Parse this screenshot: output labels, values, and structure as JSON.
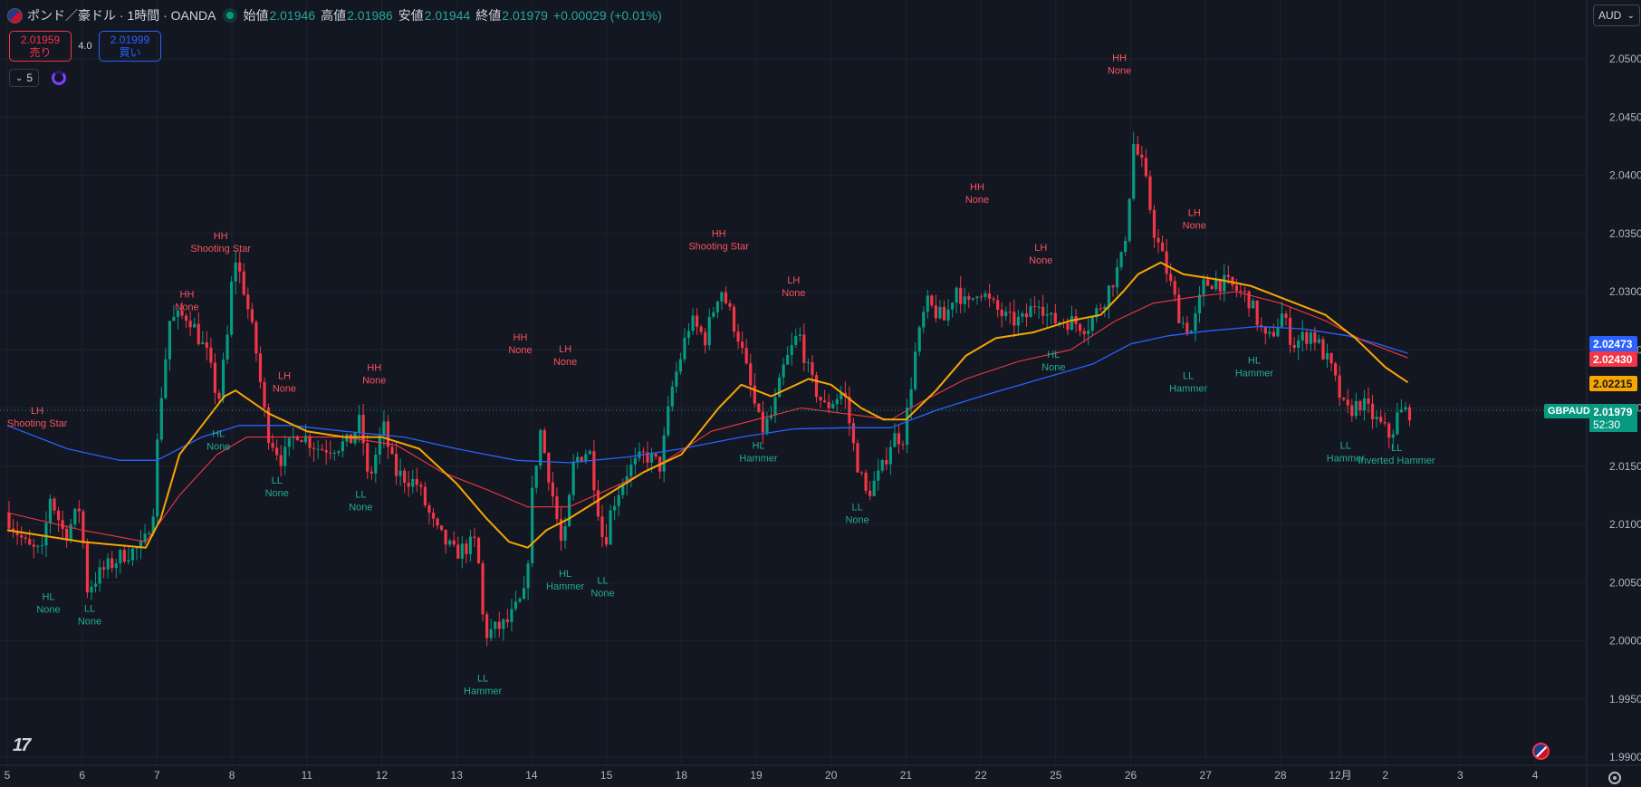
{
  "legend": {
    "symbol": "ポンド／豪ドル · 1時間 · OANDA",
    "open_label": "始値",
    "open": "2.01946",
    "high_label": "高値",
    "high": "2.01986",
    "low_label": "安値",
    "low": "2.01944",
    "close_label": "終値",
    "close": "2.01979",
    "change": "+0.00029 (+0.01%)"
  },
  "trade": {
    "sell_price": "2.01959",
    "sell_label": "売り",
    "spread": "4.0",
    "buy_price": "2.01999",
    "buy_label": "買い"
  },
  "indicators": {
    "count": "5"
  },
  "currency": "AUD",
  "price_tags": {
    "blue": "2.02473",
    "red": "2.02430",
    "orange": "2.02215",
    "last": "2.01979",
    "countdown": "52:30",
    "symbol": "GBPAUD"
  },
  "colors": {
    "background": "#131722",
    "up": "#089981",
    "down": "#f23645",
    "ema_fast": "#f7a600",
    "ma_red": "#f23645",
    "ma_blue": "#2962ff",
    "label_high": "#f7525f",
    "label_low": "#22ab94"
  },
  "chart_data": {
    "type": "candlestick",
    "y_range": [
      1.99,
      2.052
    ],
    "y_ticks": [
      2.05,
      2.045,
      2.04,
      2.035,
      2.03,
      2.025,
      2.02,
      2.015,
      2.01,
      2.005,
      2.0,
      1.995,
      1.99
    ],
    "x_range": [
      0,
      20.4
    ],
    "x_ticks": [
      {
        "x": 0,
        "label": "5"
      },
      {
        "x": 1,
        "label": "6"
      },
      {
        "x": 2,
        "label": "7"
      },
      {
        "x": 3,
        "label": "8"
      },
      {
        "x": 4,
        "label": "11"
      },
      {
        "x": 5,
        "label": "12"
      },
      {
        "x": 6,
        "label": "13"
      },
      {
        "x": 7,
        "label": "14"
      },
      {
        "x": 8,
        "label": "15"
      },
      {
        "x": 9,
        "label": "18"
      },
      {
        "x": 10,
        "label": "19"
      },
      {
        "x": 11,
        "label": "20"
      },
      {
        "x": 12,
        "label": "21"
      },
      {
        "x": 13,
        "label": "22"
      },
      {
        "x": 14,
        "label": "25"
      },
      {
        "x": 15,
        "label": "26"
      },
      {
        "x": 16,
        "label": "27"
      },
      {
        "x": 17,
        "label": "28"
      },
      {
        "x": 17.8,
        "label": "12月"
      },
      {
        "x": 18.4,
        "label": "2"
      },
      {
        "x": 19.4,
        "label": "3"
      },
      {
        "x": 20.4,
        "label": "4"
      }
    ],
    "price_path": [
      [
        0,
        2.011
      ],
      [
        0.3,
        2.008
      ],
      [
        0.5,
        2.0075
      ],
      [
        0.6,
        2.0125
      ],
      [
        0.8,
        2.009
      ],
      [
        1.0,
        2.0115
      ],
      [
        1.1,
        2.0045
      ],
      [
        1.3,
        2.006
      ],
      [
        1.6,
        2.0075
      ],
      [
        1.85,
        2.008
      ],
      [
        2.0,
        2.012
      ],
      [
        2.05,
        2.019
      ],
      [
        2.2,
        2.0275
      ],
      [
        2.45,
        2.028
      ],
      [
        2.7,
        2.0245
      ],
      [
        2.85,
        2.0205
      ],
      [
        3.0,
        2.0275
      ],
      [
        3.05,
        2.0335
      ],
      [
        3.2,
        2.03
      ],
      [
        3.35,
        2.025
      ],
      [
        3.5,
        2.018
      ],
      [
        3.7,
        2.0155
      ],
      [
        3.9,
        2.018
      ],
      [
        4.2,
        2.0165
      ],
      [
        4.6,
        2.017
      ],
      [
        4.75,
        2.019
      ],
      [
        4.85,
        2.0135
      ],
      [
        5.05,
        2.0185
      ],
      [
        5.2,
        2.0145
      ],
      [
        5.5,
        2.0135
      ],
      [
        5.75,
        2.0095
      ],
      [
        6.0,
        2.0075
      ],
      [
        6.3,
        2.0085
      ],
      [
        6.4,
        2.0005
      ],
      [
        6.7,
        2.0015
      ],
      [
        6.95,
        2.004
      ],
      [
        7.05,
        2.0135
      ],
      [
        7.15,
        2.018
      ],
      [
        7.3,
        2.013
      ],
      [
        7.45,
        2.0075
      ],
      [
        7.6,
        2.0155
      ],
      [
        7.8,
        2.0165
      ],
      [
        8.0,
        2.008
      ],
      [
        8.1,
        2.0115
      ],
      [
        8.3,
        2.0145
      ],
      [
        8.55,
        2.016
      ],
      [
        8.75,
        2.015
      ],
      [
        8.9,
        2.0215
      ],
      [
        9.15,
        2.0275
      ],
      [
        9.35,
        2.026
      ],
      [
        9.55,
        2.0305
      ],
      [
        9.8,
        2.026
      ],
      [
        10.0,
        2.0205
      ],
      [
        10.1,
        2.018
      ],
      [
        10.25,
        2.0195
      ],
      [
        10.4,
        2.0235
      ],
      [
        10.6,
        2.0265
      ],
      [
        10.75,
        2.0225
      ],
      [
        10.95,
        2.02
      ],
      [
        11.2,
        2.0215
      ],
      [
        11.35,
        2.016
      ],
      [
        11.5,
        2.0125
      ],
      [
        11.7,
        2.0145
      ],
      [
        11.85,
        2.0175
      ],
      [
        12.0,
        2.0175
      ],
      [
        12.15,
        2.0245
      ],
      [
        12.3,
        2.029
      ],
      [
        12.55,
        2.0275
      ],
      [
        12.7,
        2.0305
      ],
      [
        12.85,
        2.0285
      ],
      [
        13.0,
        2.0305
      ],
      [
        13.15,
        2.029
      ],
      [
        13.4,
        2.0275
      ],
      [
        13.6,
        2.0275
      ],
      [
        13.8,
        2.0295
      ],
      [
        13.95,
        2.0275
      ],
      [
        14.2,
        2.0275
      ],
      [
        14.45,
        2.027
      ],
      [
        14.65,
        2.029
      ],
      [
        14.9,
        2.0325
      ],
      [
        15.0,
        2.0365
      ],
      [
        15.05,
        2.043
      ],
      [
        15.2,
        2.0405
      ],
      [
        15.35,
        2.035
      ],
      [
        15.5,
        2.032
      ],
      [
        15.7,
        2.0275
      ],
      [
        15.85,
        2.0265
      ],
      [
        16.0,
        2.0305
      ],
      [
        16.15,
        2.031
      ],
      [
        16.35,
        2.0305
      ],
      [
        16.6,
        2.0295
      ],
      [
        16.85,
        2.0255
      ],
      [
        17.05,
        2.028
      ],
      [
        17.2,
        2.0255
      ],
      [
        17.45,
        2.0265
      ],
      [
        17.7,
        2.0235
      ],
      [
        17.9,
        2.0195
      ],
      [
        18.1,
        2.0205
      ],
      [
        18.3,
        2.019
      ],
      [
        18.5,
        2.0175
      ],
      [
        18.6,
        2.0195
      ],
      [
        18.7,
        2.0197
      ]
    ],
    "ema_fast": [
      [
        0,
        2.0095
      ],
      [
        1.0,
        2.0085
      ],
      [
        1.85,
        2.008
      ],
      [
        2.05,
        2.0105
      ],
      [
        2.3,
        2.016
      ],
      [
        2.6,
        2.0185
      ],
      [
        2.9,
        2.021
      ],
      [
        3.05,
        2.0215
      ],
      [
        3.5,
        2.0195
      ],
      [
        4.0,
        2.018
      ],
      [
        4.5,
        2.0175
      ],
      [
        5.0,
        2.0175
      ],
      [
        5.5,
        2.0165
      ],
      [
        6.0,
        2.0135
      ],
      [
        6.4,
        2.0105
      ],
      [
        6.7,
        2.0085
      ],
      [
        6.95,
        2.008
      ],
      [
        7.2,
        2.0095
      ],
      [
        7.5,
        2.0105
      ],
      [
        8.0,
        2.0125
      ],
      [
        8.5,
        2.0145
      ],
      [
        9.0,
        2.016
      ],
      [
        9.5,
        2.02
      ],
      [
        9.8,
        2.022
      ],
      [
        10.2,
        2.021
      ],
      [
        10.7,
        2.0225
      ],
      [
        11.0,
        2.022
      ],
      [
        11.4,
        2.02
      ],
      [
        11.7,
        2.019
      ],
      [
        12.0,
        2.019
      ],
      [
        12.4,
        2.0215
      ],
      [
        12.8,
        2.0245
      ],
      [
        13.2,
        2.026
      ],
      [
        13.7,
        2.0265
      ],
      [
        14.2,
        2.0275
      ],
      [
        14.6,
        2.028
      ],
      [
        14.9,
        2.03
      ],
      [
        15.1,
        2.0315
      ],
      [
        15.4,
        2.0325
      ],
      [
        15.7,
        2.0315
      ],
      [
        16.2,
        2.031
      ],
      [
        16.6,
        2.0305
      ],
      [
        17.0,
        2.0295
      ],
      [
        17.6,
        2.028
      ],
      [
        18.0,
        2.026
      ],
      [
        18.4,
        2.0235
      ],
      [
        18.7,
        2.0222
      ]
    ],
    "ma_red": [
      [
        0,
        2.011
      ],
      [
        1.0,
        2.0095
      ],
      [
        1.85,
        2.0085
      ],
      [
        2.3,
        2.0125
      ],
      [
        2.8,
        2.016
      ],
      [
        3.2,
        2.0175
      ],
      [
        3.7,
        2.0175
      ],
      [
        4.5,
        2.0175
      ],
      [
        5.2,
        2.0168
      ],
      [
        5.8,
        2.0145
      ],
      [
        6.4,
        2.013
      ],
      [
        6.95,
        2.0115
      ],
      [
        7.5,
        2.0115
      ],
      [
        8.2,
        2.0135
      ],
      [
        8.8,
        2.0155
      ],
      [
        9.4,
        2.018
      ],
      [
        10.0,
        2.019
      ],
      [
        10.6,
        2.02
      ],
      [
        11.2,
        2.0195
      ],
      [
        11.8,
        2.019
      ],
      [
        12.2,
        2.0205
      ],
      [
        12.8,
        2.0225
      ],
      [
        13.5,
        2.024
      ],
      [
        14.2,
        2.025
      ],
      [
        14.8,
        2.0275
      ],
      [
        15.3,
        2.029
      ],
      [
        15.8,
        2.0295
      ],
      [
        16.4,
        2.03
      ],
      [
        17.0,
        2.029
      ],
      [
        17.6,
        2.0275
      ],
      [
        18.1,
        2.0258
      ],
      [
        18.7,
        2.0243
      ]
    ],
    "ma_blue": [
      [
        0,
        2.0185
      ],
      [
        0.8,
        2.0165
      ],
      [
        1.5,
        2.0155
      ],
      [
        2.0,
        2.0155
      ],
      [
        2.6,
        2.0175
      ],
      [
        3.1,
        2.0185
      ],
      [
        3.8,
        2.0185
      ],
      [
        4.5,
        2.018
      ],
      [
        5.3,
        2.0175
      ],
      [
        6.0,
        2.0165
      ],
      [
        6.8,
        2.0155
      ],
      [
        7.5,
        2.0153
      ],
      [
        8.3,
        2.0158
      ],
      [
        9.0,
        2.0165
      ],
      [
        9.8,
        2.0175
      ],
      [
        10.5,
        2.0182
      ],
      [
        11.2,
        2.0183
      ],
      [
        11.8,
        2.0183
      ],
      [
        12.4,
        2.0198
      ],
      [
        13.0,
        2.021
      ],
      [
        13.8,
        2.0225
      ],
      [
        14.5,
        2.0238
      ],
      [
        15.0,
        2.0255
      ],
      [
        15.5,
        2.0262
      ],
      [
        16.0,
        2.0266
      ],
      [
        16.7,
        2.027
      ],
      [
        17.3,
        2.0268
      ],
      [
        17.9,
        2.0262
      ],
      [
        18.3,
        2.0255
      ],
      [
        18.7,
        2.0247
      ]
    ],
    "annotations": [
      {
        "x": 0.4,
        "y": 2.0195,
        "type": "high",
        "lines": [
          "LH",
          "Shooting Star"
        ]
      },
      {
        "x": 0.55,
        "y": 2.0035,
        "type": "low",
        "lines": [
          "HL",
          "None"
        ]
      },
      {
        "x": 1.1,
        "y": 2.0025,
        "type": "low",
        "lines": [
          "LL",
          "None"
        ]
      },
      {
        "x": 2.4,
        "y": 2.0295,
        "type": "high",
        "lines": [
          "HH",
          "None"
        ]
      },
      {
        "x": 2.85,
        "y": 2.0345,
        "type": "high",
        "lines": [
          "HH",
          "Shooting Star"
        ]
      },
      {
        "x": 2.82,
        "y": 2.0175,
        "type": "low",
        "lines": [
          "HL",
          "None"
        ]
      },
      {
        "x": 3.7,
        "y": 2.0225,
        "type": "high",
        "lines": [
          "LH",
          "None"
        ]
      },
      {
        "x": 3.6,
        "y": 2.0135,
        "type": "low",
        "lines": [
          "LL",
          "None"
        ]
      },
      {
        "x": 4.9,
        "y": 2.0232,
        "type": "high",
        "lines": [
          "HH",
          "None"
        ]
      },
      {
        "x": 4.72,
        "y": 2.0123,
        "type": "low",
        "lines": [
          "LL",
          "None"
        ]
      },
      {
        "x": 6.85,
        "y": 2.0258,
        "type": "high",
        "lines": [
          "HH",
          "None"
        ]
      },
      {
        "x": 7.45,
        "y": 2.0248,
        "type": "high",
        "lines": [
          "LH",
          "None"
        ]
      },
      {
        "x": 7.45,
        "y": 2.0055,
        "type": "low",
        "lines": [
          "HL",
          "Hammer"
        ]
      },
      {
        "x": 6.35,
        "y": 1.9965,
        "type": "low",
        "lines": [
          "LL",
          "Hammer"
        ]
      },
      {
        "x": 7.95,
        "y": 2.0049,
        "type": "low",
        "lines": [
          "LL",
          "None"
        ]
      },
      {
        "x": 9.5,
        "y": 2.0347,
        "type": "high",
        "lines": [
          "HH",
          "Shooting Star"
        ]
      },
      {
        "x": 10.5,
        "y": 2.0307,
        "type": "high",
        "lines": [
          "LH",
          "None"
        ]
      },
      {
        "x": 10.03,
        "y": 2.0165,
        "type": "low",
        "lines": [
          "HL",
          "Hammer"
        ]
      },
      {
        "x": 11.35,
        "y": 2.0112,
        "type": "low",
        "lines": [
          "LL",
          "None"
        ]
      },
      {
        "x": 12.95,
        "y": 2.0387,
        "type": "high",
        "lines": [
          "HH",
          "None"
        ]
      },
      {
        "x": 13.8,
        "y": 2.0335,
        "type": "high",
        "lines": [
          "LH",
          "None"
        ]
      },
      {
        "x": 13.97,
        "y": 2.0243,
        "type": "low",
        "lines": [
          "HL",
          "None"
        ]
      },
      {
        "x": 14.85,
        "y": 2.0498,
        "type": "high",
        "lines": [
          "HH",
          "None"
        ]
      },
      {
        "x": 15.85,
        "y": 2.0365,
        "type": "high",
        "lines": [
          "LH",
          "None"
        ]
      },
      {
        "x": 15.77,
        "y": 2.0225,
        "type": "low",
        "lines": [
          "LL",
          "Hammer"
        ]
      },
      {
        "x": 16.65,
        "y": 2.0238,
        "type": "low",
        "lines": [
          "HL",
          "Hammer"
        ]
      },
      {
        "x": 17.87,
        "y": 2.0165,
        "type": "low",
        "lines": [
          "LL",
          "Hammer"
        ]
      },
      {
        "x": 18.55,
        "y": 2.0163,
        "type": "low",
        "lines": [
          "LL",
          "Inverted Hammer"
        ]
      }
    ]
  }
}
